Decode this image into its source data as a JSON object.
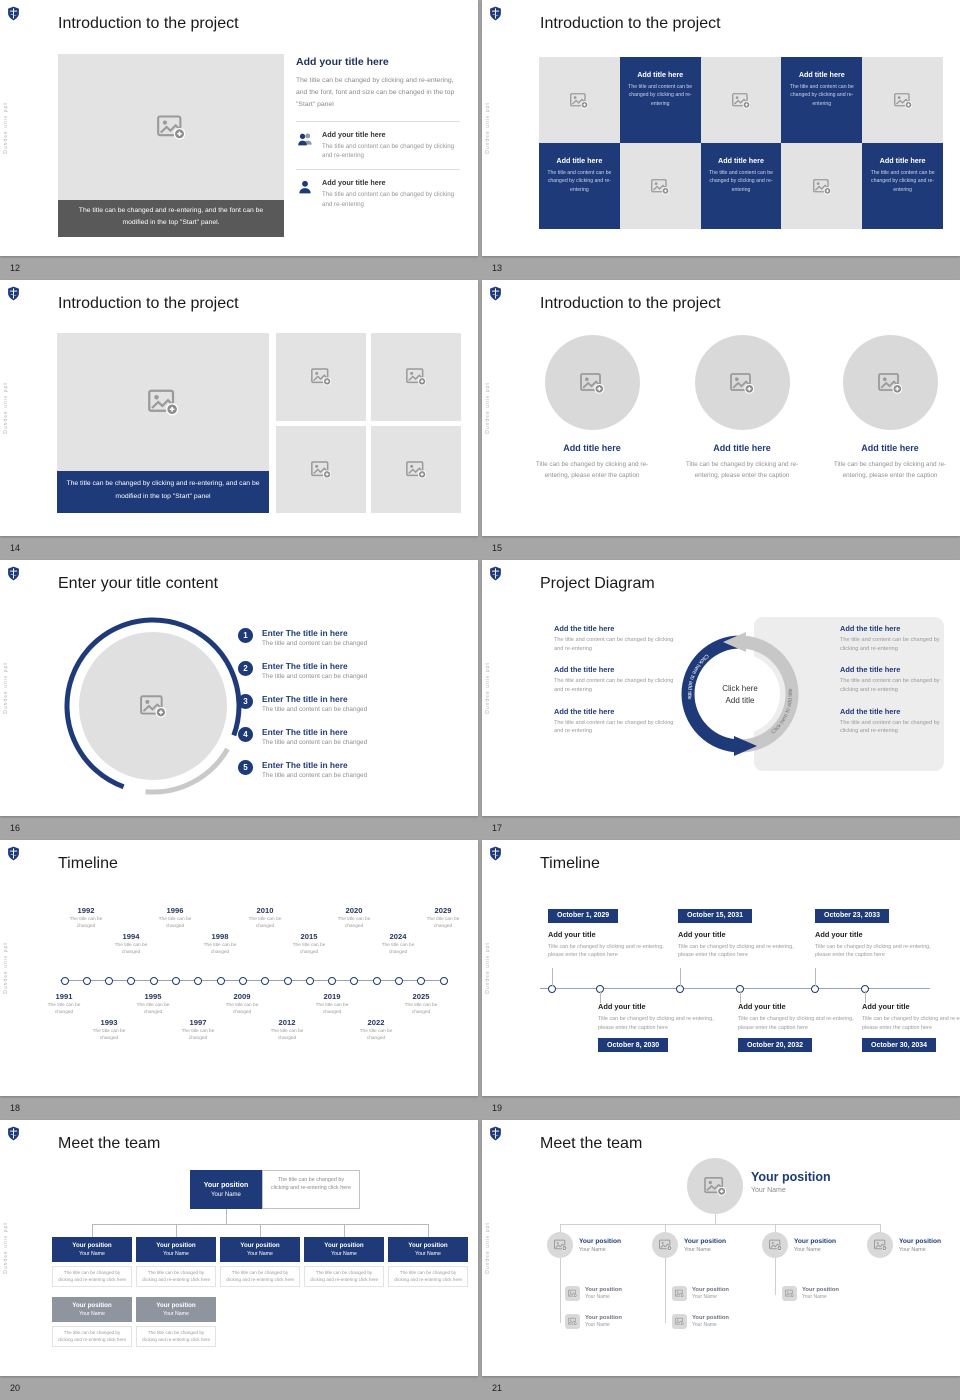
{
  "theme": {
    "accent": "#1e3a78",
    "slide_bg": "#ffffff",
    "page_bg": "#a6a6a6",
    "placeholder_gray": "#e3e3e3",
    "dark_caption_bg": "#595959"
  },
  "chrome": {
    "vertical_text": "Dundee univ ppt"
  },
  "s12": {
    "number": "12",
    "title": "Introduction to the project",
    "image_caption": "The title can be changed and re-entering, and the font can be modified in the top \"Start\" panel.",
    "heading": "Add your title here",
    "heading_body": "The title can be changed by clicking and re-entering, and the font, font and size can be changed in the top \"Start\" panel",
    "item1_title": "Add your title here",
    "item1_body": "The title and content can be changed by clicking and re-entering",
    "item2_title": "Add your title here",
    "item2_body": "The title and content can be changed by clicking and re-entering"
  },
  "s13": {
    "number": "13",
    "title": "Introduction to the project",
    "tile_title": "Add title here",
    "tile_body": "The title and content can be changed by clicking and re-entering"
  },
  "s14": {
    "number": "14",
    "title": "Introduction to the project",
    "image_caption": "The title can be changed by clicking and re-entering, and can be modified in the top \"Start\" panel"
  },
  "s15": {
    "number": "15",
    "title": "Introduction to the project",
    "item_title": "Add title here",
    "item_body": "Title can be changed by clicking and re-entering, please enter the caption"
  },
  "s16": {
    "number": "16",
    "title": "Enter your title content",
    "nums": [
      "1",
      "2",
      "3",
      "4",
      "5"
    ],
    "item_title": "Enter The title in here",
    "item_body": "The title and content can be changed"
  },
  "s17": {
    "number": "17",
    "title": "Project Diagram",
    "item_title": "Add the title here",
    "item_body": "The title and content can be changed by clicking and re-entering",
    "center_line1": "Click here",
    "center_line2": "Add title",
    "arc_label": "Click here to add title"
  },
  "s18": {
    "number": "18",
    "title": "Timeline",
    "caption": "The title can be changed",
    "top": [
      "1992",
      "1994",
      "1996",
      "1998",
      "2010",
      "2015",
      "2020",
      "2024",
      "2029"
    ],
    "bottom": [
      "1991",
      "1993",
      "1995",
      "1997",
      "2009",
      "2012",
      "2019",
      "2022",
      "2025"
    ]
  },
  "s19": {
    "number": "19",
    "title": "Timeline",
    "item_title": "Add your title",
    "caption": "Title can be changed by clicking and re-entering, please enter the caption here",
    "dates_top": [
      "October 1, 2029",
      "October 15, 2031",
      "October 23, 2033"
    ],
    "dates_bottom": [
      "October 8, 2030",
      "October 20, 2032",
      "October 30, 2034"
    ]
  },
  "s20": {
    "number": "20",
    "title": "Meet the team",
    "position": "Your position",
    "name": "Your Name",
    "note": "The title can be changed by clicking and re-entering click here",
    "caption": "The title can be changed by clicking and re-entering click here"
  },
  "s21": {
    "number": "21",
    "title": "Meet the team",
    "position": "Your position",
    "name": "Your Name"
  }
}
